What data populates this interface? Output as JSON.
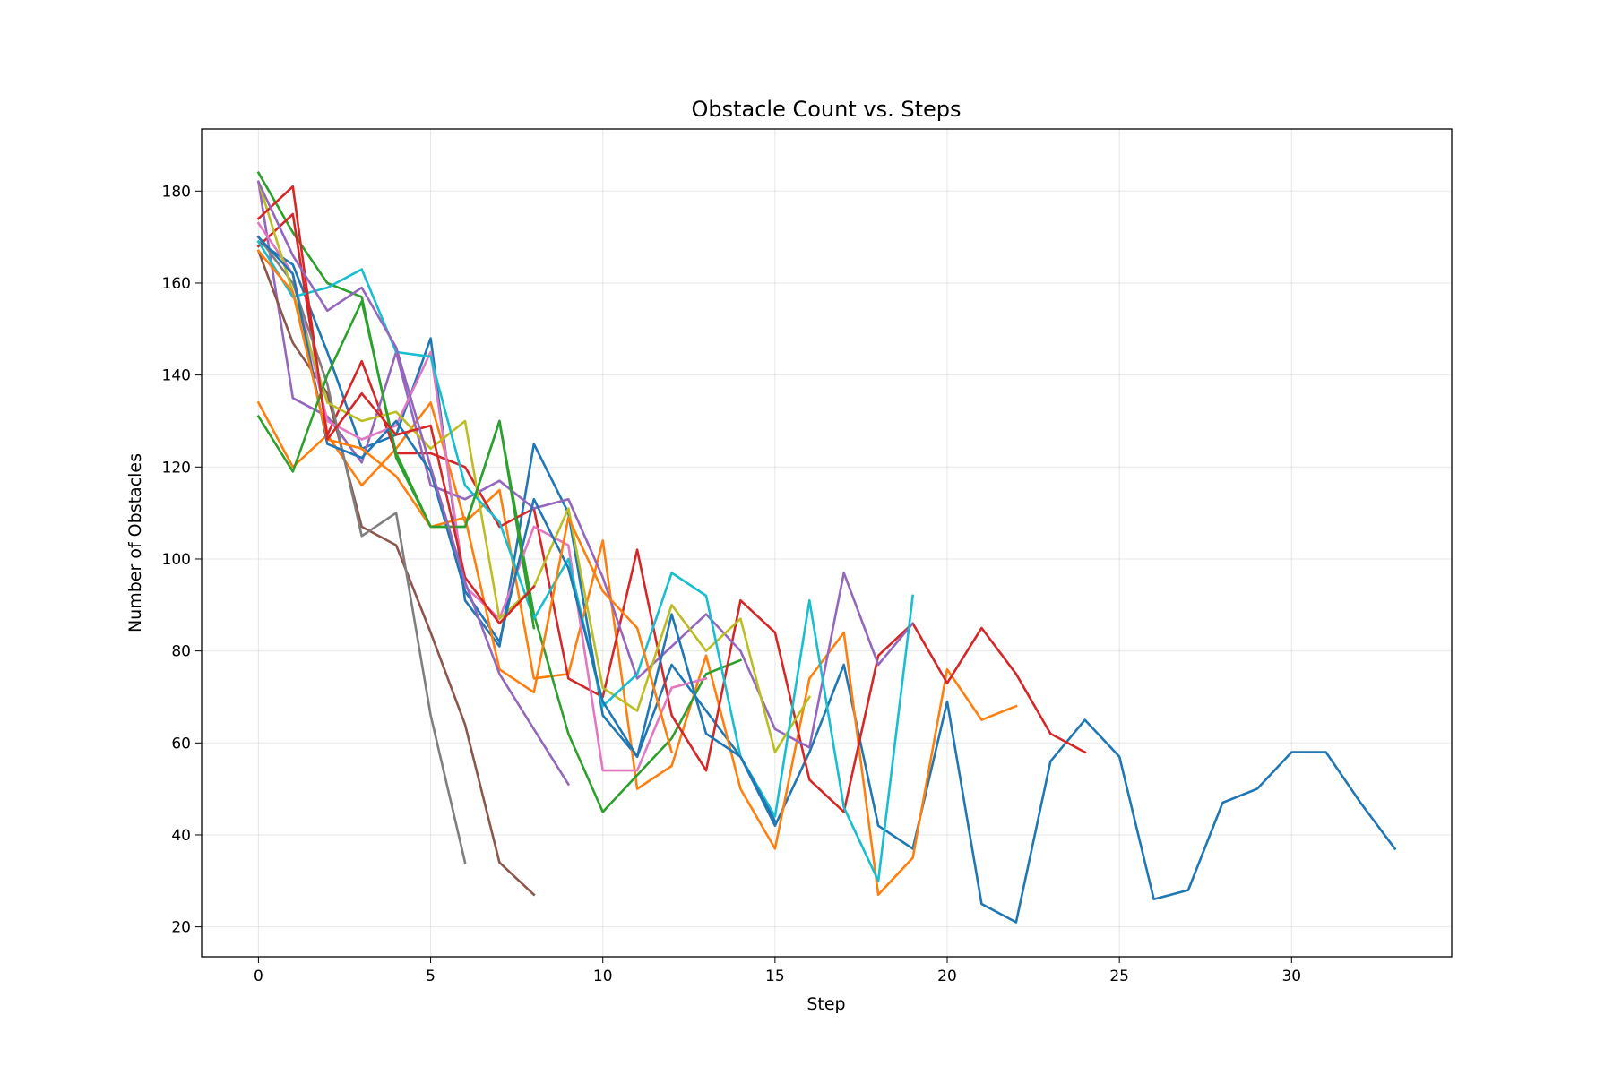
{
  "chart_data": {
    "type": "line",
    "title": "Obstacle Count vs. Steps",
    "xlabel": "Step",
    "ylabel": "Number of Obstacles",
    "xlim": [
      -1.65,
      34.65
    ],
    "ylim": [
      13.5,
      193.5
    ],
    "xticks": [
      0,
      5,
      10,
      15,
      20,
      25,
      30
    ],
    "yticks": [
      20,
      40,
      60,
      80,
      100,
      120,
      140,
      160,
      180
    ],
    "grid": true,
    "legend": "none",
    "series": [
      {
        "color": "#1f77b4",
        "values": [
          169,
          164,
          145,
          124,
          127,
          148,
          91,
          81,
          125,
          110,
          66,
          57,
          77,
          67,
          57,
          42,
          58,
          77,
          42,
          37,
          69,
          25,
          21,
          56,
          65,
          57,
          26,
          28,
          47,
          50,
          58,
          58,
          47,
          37
        ]
      },
      {
        "color": "#ff7f0e",
        "values": [
          134,
          120,
          127,
          116,
          124,
          134,
          108,
          115,
          74,
          75,
          104,
          50,
          55,
          79,
          50,
          37,
          74,
          84,
          27,
          35,
          76,
          65,
          68
        ]
      },
      {
        "color": "#2ca02c",
        "values": [
          184,
          171,
          160,
          157,
          122,
          107,
          107,
          130,
          88,
          62,
          45,
          53,
          61,
          75,
          78
        ]
      },
      {
        "color": "#d62728",
        "values": [
          168,
          175,
          127,
          143,
          123,
          123,
          120,
          107,
          111,
          74,
          70,
          102,
          66,
          54,
          91,
          84,
          52,
          45,
          79,
          86,
          73,
          85,
          75,
          62,
          58
        ]
      },
      {
        "color": "#9467bd",
        "values": [
          182,
          135,
          131,
          121,
          145,
          116,
          113,
          117,
          111,
          113,
          96,
          74,
          81,
          88,
          80,
          63,
          59,
          97,
          77,
          86
        ]
      },
      {
        "color": "#8c564b",
        "values": [
          167,
          147,
          136,
          107,
          103,
          84,
          64,
          34,
          27
        ]
      },
      {
        "color": "#e377c2",
        "values": [
          173,
          162,
          130,
          126,
          129,
          145,
          94,
          87,
          107,
          103,
          54,
          54,
          72,
          74
        ]
      },
      {
        "color": "#7f7f7f",
        "values": [
          170,
          160,
          138,
          105,
          110,
          66,
          34
        ]
      },
      {
        "color": "#bcbd22",
        "values": [
          182,
          158,
          134,
          130,
          132,
          124,
          130,
          87,
          94,
          111,
          72,
          67,
          90,
          80,
          87,
          58,
          70
        ]
      },
      {
        "color": "#17becf",
        "values": [
          169,
          157,
          159,
          163,
          145,
          144,
          116,
          108,
          87,
          100,
          68,
          75,
          97,
          92,
          57,
          44,
          91,
          46,
          30,
          92
        ]
      },
      {
        "color": "#1f77b4",
        "values": [
          170,
          162,
          125,
          122,
          130,
          119,
          93,
          82,
          113,
          98,
          69,
          57,
          88,
          62,
          57,
          43
        ]
      },
      {
        "color": "#ff7f0e",
        "values": [
          167,
          158,
          126,
          124,
          118,
          107,
          109,
          76,
          71,
          109,
          93,
          85,
          58
        ]
      },
      {
        "color": "#2ca02c",
        "values": [
          131,
          119,
          140,
          156,
          123,
          107,
          107,
          130,
          85
        ]
      },
      {
        "color": "#d62728",
        "values": [
          174,
          181,
          126,
          136,
          127,
          129,
          96,
          86,
          94
        ]
      },
      {
        "color": "#9467bd",
        "values": [
          182,
          166,
          154,
          159,
          146,
          120,
          95,
          75,
          63,
          51
        ]
      }
    ]
  }
}
